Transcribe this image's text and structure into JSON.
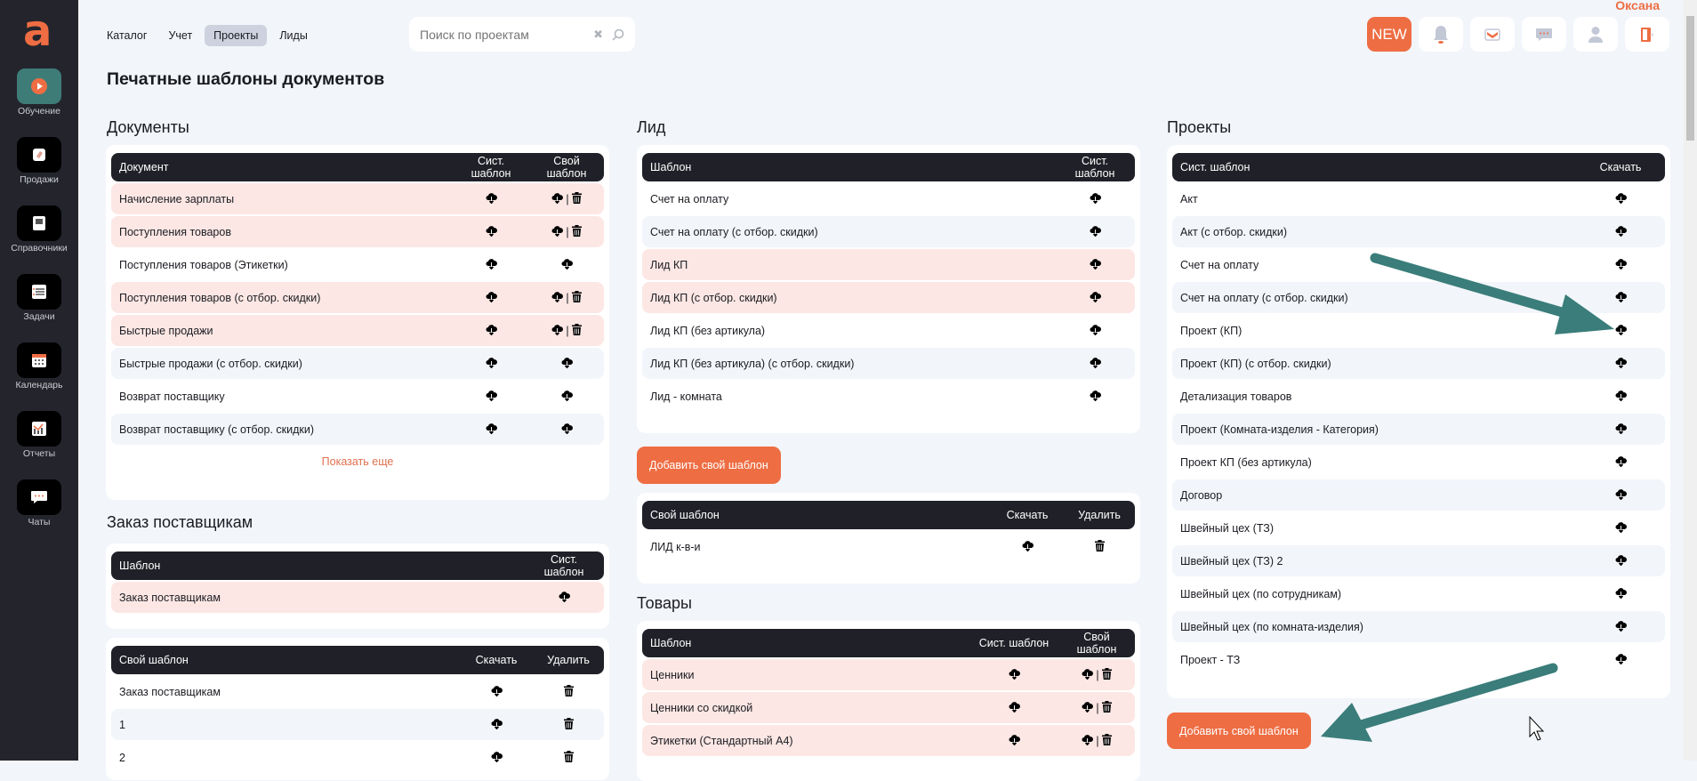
{
  "sidebar": {
    "logo": "a",
    "items": [
      {
        "label": "Обучение",
        "icon": "play-icon"
      },
      {
        "label": "Продажи",
        "icon": "tag-icon"
      },
      {
        "label": "Справочники",
        "icon": "book-icon"
      },
      {
        "label": "Задачи",
        "icon": "list-icon"
      },
      {
        "label": "Календарь",
        "icon": "calendar-icon"
      },
      {
        "label": "Отчеты",
        "icon": "chart-icon"
      },
      {
        "label": "Чаты",
        "icon": "chat-icon"
      }
    ]
  },
  "nav": {
    "tabs": [
      "Каталог",
      "Учет",
      "Проекты",
      "Лиды"
    ],
    "active": 2
  },
  "search": {
    "placeholder": "Поиск по проектам"
  },
  "header": {
    "new_label": "NEW",
    "user": "Оксана"
  },
  "page_title": "Печатные шаблоны документов",
  "colors": {
    "accent": "#ee6d43",
    "dark": "#202128",
    "pink": "#fce7e4",
    "teal": "#3e7c78"
  },
  "documents": {
    "title": "Документы",
    "headers": [
      "Документ",
      "Сист. шаблон",
      "Свой шаблон"
    ],
    "rows": [
      {
        "name": "Начисление зарплаты",
        "style": "pink",
        "own": "download-delete"
      },
      {
        "name": "Поступления товаров",
        "style": "pink",
        "own": "download-delete"
      },
      {
        "name": "Поступления товаров (Этикетки)",
        "style": "plain",
        "own": "download"
      },
      {
        "name": "Поступления товаров (с отбор. скидки)",
        "style": "pink",
        "own": "download-delete"
      },
      {
        "name": "Быстрые продажи",
        "style": "pink",
        "own": "download-delete"
      },
      {
        "name": "Быстрые продажи (с отбор. скидки)",
        "style": "alt",
        "own": "download"
      },
      {
        "name": "Возврат поставщику",
        "style": "plain",
        "own": "download"
      },
      {
        "name": "Возврат поставщику (с отбор. скидки)",
        "style": "alt",
        "own": "download"
      }
    ],
    "show_more": "Показать еще"
  },
  "supplier_order": {
    "title": "Заказ поставщикам",
    "headers": [
      "Шаблон",
      "Сист. шаблон"
    ],
    "rows": [
      {
        "name": "Заказ поставщикам",
        "style": "pink"
      }
    ],
    "own_headers": [
      "Свой шаблон",
      "Скачать",
      "Удалить"
    ],
    "own_rows": [
      {
        "name": "Заказ поставщикам",
        "style": "plain"
      },
      {
        "name": "1",
        "style": "alt"
      },
      {
        "name": "2",
        "style": "plain"
      }
    ]
  },
  "lead": {
    "title": "Лид",
    "headers": [
      "Шаблон",
      "Сист. шаблон"
    ],
    "rows": [
      {
        "name": "Счет на оплату",
        "style": "plain"
      },
      {
        "name": "Счет на оплату (с отбор. скидки)",
        "style": "alt"
      },
      {
        "name": "Лид КП",
        "style": "pink"
      },
      {
        "name": "Лид КП (с отбор. скидки)",
        "style": "pink"
      },
      {
        "name": "Лид КП (без артикула)",
        "style": "plain"
      },
      {
        "name": "Лид КП (без артикула) (с отбор. скидки)",
        "style": "alt"
      },
      {
        "name": "Лид - комната",
        "style": "plain"
      }
    ],
    "add_label": "Добавить свой шаблон",
    "own_headers": [
      "Свой шаблон",
      "Скачать",
      "Удалить"
    ],
    "own_rows": [
      {
        "name": "ЛИД к-в-и",
        "style": "plain"
      }
    ]
  },
  "goods": {
    "title": "Товары",
    "headers": [
      "Шаблон",
      "Сист. шаблон",
      "Свой шаблон"
    ],
    "rows": [
      {
        "name": "Ценники",
        "style": "pink",
        "own": "download-delete"
      },
      {
        "name": "Ценники со скидкой",
        "style": "pink",
        "own": "download-delete"
      },
      {
        "name": "Этикетки (Стандартный А4)",
        "style": "pink",
        "own": "download-delete"
      }
    ]
  },
  "projects": {
    "title": "Проекты",
    "headers": [
      "Сист. шаблон",
      "Скачать"
    ],
    "rows": [
      {
        "name": "Акт",
        "style": "plain"
      },
      {
        "name": "Акт (с отбор. скидки)",
        "style": "alt"
      },
      {
        "name": "Счет на оплату",
        "style": "plain"
      },
      {
        "name": "Счет на оплату (с отбор. скидки)",
        "style": "alt"
      },
      {
        "name": "Проект (КП)",
        "style": "plain"
      },
      {
        "name": "Проект (КП) (с отбор. скидки)",
        "style": "alt"
      },
      {
        "name": "Детализация товаров",
        "style": "plain"
      },
      {
        "name": "Проект (Комната-изделия - Категория)",
        "style": "alt"
      },
      {
        "name": "Проект КП (без артикула)",
        "style": "plain"
      },
      {
        "name": "Договор",
        "style": "alt"
      },
      {
        "name": "Швейный цех (ТЗ)",
        "style": "plain"
      },
      {
        "name": "Швейный цех (ТЗ) 2",
        "style": "alt"
      },
      {
        "name": "Швейный цех (по сотрудникам)",
        "style": "plain"
      },
      {
        "name": "Швейный цех (по комната-изделия)",
        "style": "alt"
      },
      {
        "name": "Проект - ТЗ",
        "style": "plain"
      }
    ],
    "add_label": "Добавить свой шаблон"
  }
}
